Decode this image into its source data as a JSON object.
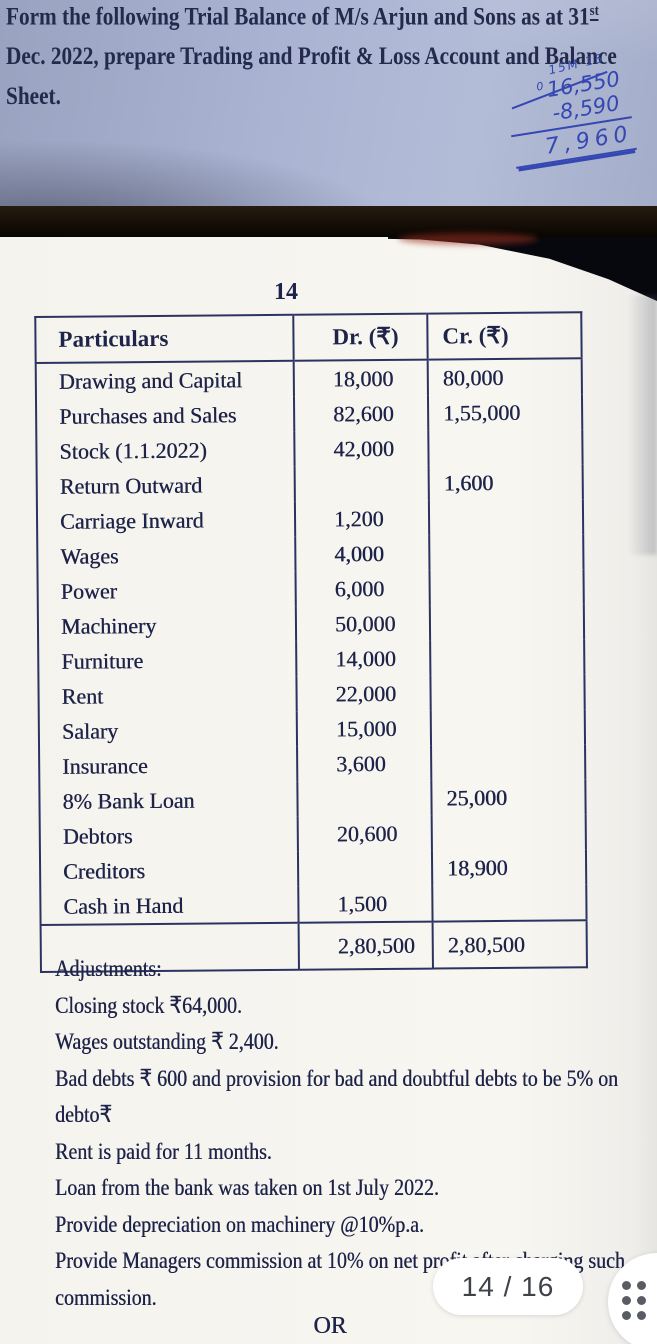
{
  "question": {
    "line1": "Form the following Trial Balance of M/s Arjun and Sons as at 31",
    "line1_sup": "st",
    "line2": "Dec. 2022, prepare Trading and Profit & Loss Account and Balance",
    "line3": "Sheet."
  },
  "handwriting": {
    "note": "15M 15",
    "stray": "0",
    "minuend": "16,550",
    "subtrahend": "-8,590",
    "result": "7,960"
  },
  "page_number": "14",
  "table": {
    "headers": {
      "particulars": "Particulars",
      "dr": "Dr. (₹)",
      "cr": "Cr. (₹)"
    },
    "rows": [
      {
        "particulars": "Drawing and Capital",
        "dr": "18,000",
        "cr": "80,000"
      },
      {
        "particulars": "Purchases and Sales",
        "dr": "82,600",
        "cr": "1,55,000"
      },
      {
        "particulars": "Stock (1.1.2022)",
        "dr": "42,000",
        "cr": ""
      },
      {
        "particulars": "Return Outward",
        "dr": "",
        "cr": "1,600"
      },
      {
        "particulars": "Carriage Inward",
        "dr": "1,200",
        "cr": ""
      },
      {
        "particulars": "Wages",
        "dr": "4,000",
        "cr": ""
      },
      {
        "particulars": "Power",
        "dr": "6,000",
        "cr": ""
      },
      {
        "particulars": "Machinery",
        "dr": "50,000",
        "cr": ""
      },
      {
        "particulars": "Furniture",
        "dr": "14,000",
        "cr": ""
      },
      {
        "particulars": "Rent",
        "dr": "22,000",
        "cr": ""
      },
      {
        "particulars": "Salary",
        "dr": "15,000",
        "cr": ""
      },
      {
        "particulars": "Insurance",
        "dr": "3,600",
        "cr": ""
      },
      {
        "particulars": "8% Bank Loan",
        "dr": "",
        "cr": "25,000"
      },
      {
        "particulars": "Debtors",
        "dr": "20,600",
        "cr": ""
      },
      {
        "particulars": "Creditors",
        "dr": "",
        "cr": "18,900"
      },
      {
        "particulars": "Cash in Hand",
        "dr": "1,500",
        "cr": ""
      }
    ],
    "total": {
      "particulars": "",
      "dr": "2,80,500",
      "cr": "2,80,500"
    }
  },
  "adjustments": {
    "heading": "Adjustments:",
    "items": [
      "Closing stock ₹64,000.",
      "Wages outstanding ₹ 2,400.",
      "Bad debts ₹ 600 and provision for bad and doubtful debts to be 5% on debto₹",
      "Rent is paid for 11 months.",
      "Loan from the bank was taken on 1st July 2022.",
      "Provide depreciation on machinery @10%p.a.",
      "Provide Managers commission at 10% on net profit after charging such commission."
    ]
  },
  "or_label": "OR",
  "viewer": {
    "page_indicator": "14 / 16",
    "grid_button_icon": "grid-dots-icon"
  },
  "colors": {
    "paper_top": "#aab4d2",
    "ink_blue": "#3547b2",
    "page": "#f8f6f1",
    "table_ink": "#1e2449",
    "band": "#170f07",
    "pill_text": "#3f4349",
    "dots": "#595d63"
  }
}
